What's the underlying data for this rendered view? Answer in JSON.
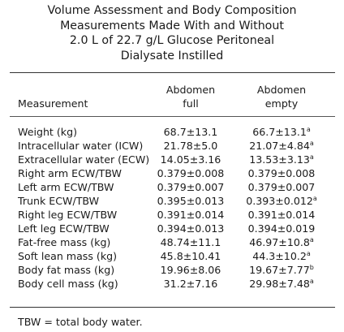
{
  "title_lines": [
    "Volume Assessment and Body Composition",
    "Measurements Made With and Without",
    "2.0 L of 22.7 g/L Glucose Peritoneal",
    "Dialysate Instilled"
  ],
  "columns": {
    "measurement": "Measurement",
    "full": [
      "Abdomen",
      "full"
    ],
    "empty": [
      "Abdomen",
      "empty"
    ]
  },
  "rows": [
    {
      "measurement": "Weight (kg)",
      "full": "68.7±13.1",
      "full_sup": "",
      "empty": "66.7±13.1",
      "empty_sup": "a"
    },
    {
      "measurement": "Intracellular water (ICW)",
      "full": "21.78±5.0",
      "full_sup": "",
      "empty": "21.07±4.84",
      "empty_sup": "a"
    },
    {
      "measurement": "Extracellular water (ECW)",
      "full": "14.05±3.16",
      "full_sup": "",
      "empty": "13.53±3.13",
      "empty_sup": "a"
    },
    {
      "measurement": "Right arm ECW/TBW",
      "full": "0.379±0.008",
      "full_sup": "",
      "empty": "0.379±0.008",
      "empty_sup": ""
    },
    {
      "measurement": "Left arm ECW/TBW",
      "full": "0.379±0.007",
      "full_sup": "",
      "empty": "0.379±0.007",
      "empty_sup": ""
    },
    {
      "measurement": "Trunk ECW/TBW",
      "full": "0.395±0.013",
      "full_sup": "",
      "empty": "0.393±0.012",
      "empty_sup": "a"
    },
    {
      "measurement": "Right leg ECW/TBW",
      "full": "0.391±0.014",
      "full_sup": "",
      "empty": "0.391±0.014",
      "empty_sup": ""
    },
    {
      "measurement": "Left leg ECW/TBW",
      "full": "0.394±0.013",
      "full_sup": "",
      "empty": "0.394±0.019",
      "empty_sup": ""
    },
    {
      "measurement": "Fat-free mass (kg)",
      "full": "48.74±11.1",
      "full_sup": "",
      "empty": "46.97±10.8",
      "empty_sup": "a"
    },
    {
      "measurement": "Soft lean mass (kg)",
      "full": "45.8±10.41",
      "full_sup": "",
      "empty": "44.3±10.2",
      "empty_sup": "a"
    },
    {
      "measurement": "Body fat mass (kg)",
      "full": "19.96±8.06",
      "full_sup": "",
      "empty": "19.67±7.77",
      "empty_sup": "b"
    },
    {
      "measurement": "Body cell mass (kg)",
      "full": "31.2±7.16",
      "full_sup": "",
      "empty": "29.98±7.48",
      "empty_sup": "a"
    }
  ],
  "footnote": "TBW = total body water."
}
